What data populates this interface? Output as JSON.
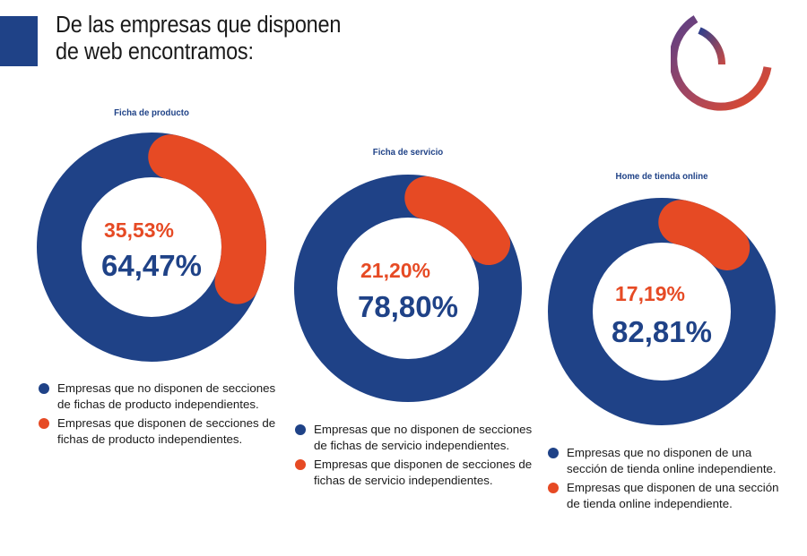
{
  "header": {
    "title_line1": "De las empresas que disponen",
    "title_line2": "de web encontramos:"
  },
  "colors": {
    "primary_blue": "#1f4287",
    "accent_orange": "#e64a24",
    "text": "#1a1a1a"
  },
  "chart_data": [
    {
      "type": "pie",
      "variant": "donut",
      "title": "Ficha de producto",
      "slices": [
        {
          "label": "Empresas que no disponen de secciones de fichas de producto independientes.",
          "value": 64.47,
          "display": "64,47%",
          "color": "#1f4287"
        },
        {
          "label": "Empresas que disponen de secciones de fichas de producto independientes.",
          "value": 35.53,
          "display": "35,53%",
          "color": "#e64a24"
        }
      ],
      "legend": {
        "position": "bottom",
        "items": [
          {
            "text": "Empresas que no disponen de secciones de fichas de producto independientes.",
            "color": "#1f4287"
          },
          {
            "text": "Empresas que disponen de secciones de fichas de producto independientes.",
            "color": "#e64a24"
          }
        ]
      }
    },
    {
      "type": "pie",
      "variant": "donut",
      "title": "Ficha de servicio",
      "slices": [
        {
          "label": "Empresas que no disponen de secciones de fichas de servicio independientes.",
          "value": 78.8,
          "display": "78,80%",
          "color": "#1f4287"
        },
        {
          "label": "Empresas que disponen de secciones de fichas de servicio independientes.",
          "value": 21.2,
          "display": "21,20%",
          "color": "#e64a24"
        }
      ],
      "legend": {
        "position": "bottom",
        "items": [
          {
            "text": "Empresas que no disponen de secciones de fichas de servicio independientes.",
            "color": "#1f4287"
          },
          {
            "text": "Empresas que disponen de secciones de fichas de servicio independientes.",
            "color": "#e64a24"
          }
        ]
      }
    },
    {
      "type": "pie",
      "variant": "donut",
      "title": "Home de tienda online",
      "slices": [
        {
          "label": "Empresas que no disponen de una sección de tienda online independiente.",
          "value": 82.81,
          "display": "82,81%",
          "color": "#1f4287"
        },
        {
          "label": "Empresas que disponen de una sección de tienda online independiente.",
          "value": 17.19,
          "display": "17,19%",
          "color": "#e64a24"
        }
      ],
      "legend": {
        "position": "bottom",
        "items": [
          {
            "text": "Empresas que no disponen de una sección de tienda online independiente.",
            "color": "#1f4287"
          },
          {
            "text": "Empresas que disponen de una sección de tienda online independiente.",
            "color": "#e64a24"
          }
        ]
      }
    }
  ],
  "logo": {
    "icon": "circular-arcs-logo-icon"
  }
}
